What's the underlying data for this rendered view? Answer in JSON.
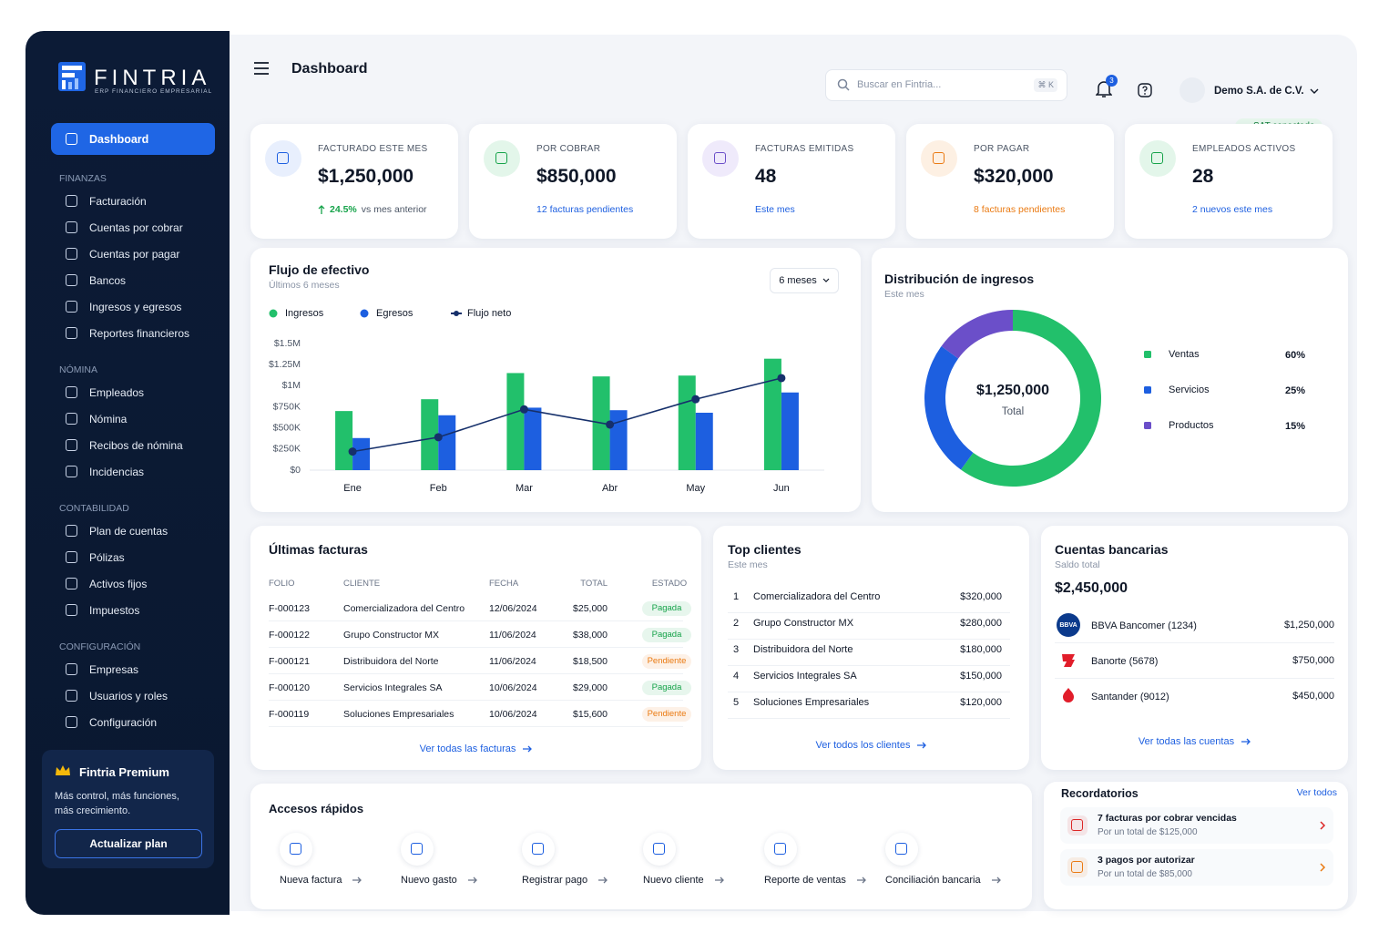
{
  "brand": {
    "name": "FINTRIA",
    "tagline": "ERP FINANCIERO EMPRESARIAL"
  },
  "sidebar": {
    "active": "Dashboard",
    "sections": [
      {
        "title": "FINANZAS",
        "items": [
          "Facturación",
          "Cuentas por cobrar",
          "Cuentas por pagar",
          "Bancos",
          "Ingresos y egresos",
          "Reportes financieros"
        ]
      },
      {
        "title": "NÓMINA",
        "items": [
          "Empleados",
          "Nómina",
          "Recibos de nómina",
          "Incidencias"
        ]
      },
      {
        "title": "CONTABILIDAD",
        "items": [
          "Plan de cuentas",
          "Pólizas",
          "Activos fijos",
          "Impuestos"
        ]
      },
      {
        "title": "CONFIGURACIÓN",
        "items": [
          "Empresas",
          "Usuarios y roles",
          "Configuración"
        ]
      }
    ],
    "promo": {
      "title": "Fintria Premium",
      "text": "Más control, más funciones, más crecimiento.",
      "button": "Actualizar plan"
    }
  },
  "header": {
    "title": "Dashboard",
    "search": "Buscar en Fintria...",
    "shortcut": "⌘ K",
    "notifications": 3,
    "company": "Demo S.A. de C.V.",
    "status": "SAT conectado"
  },
  "kpis": [
    {
      "label": "FACTURADO ESTE MES",
      "value": "$1,250,000",
      "change": "24.5%",
      "note": "vs mes anterior",
      "note_color": "#16a34a"
    },
    {
      "label": "POR COBRAR",
      "value": "$850,000",
      "note": "12 facturas pendientes",
      "note_color": "#1d5fe0"
    },
    {
      "label": "FACTURAS EMITIDAS",
      "value": "48",
      "note": "Este mes",
      "note_color": "#1d5fe0"
    },
    {
      "label": "POR PAGAR",
      "value": "$320,000",
      "note": "8 facturas pendientes",
      "note_color": "#ea7a12"
    },
    {
      "label": "EMPLEADOS ACTIVOS",
      "value": "28",
      "note": "2 nuevos este mes",
      "note_color": "#1d5fe0"
    }
  ],
  "cash_flow": {
    "type": "bar",
    "title": "Flujo de efectivo",
    "subtitle": "Últimos 6 meses",
    "period": "6 meses",
    "categories": [
      "Ene",
      "Feb",
      "Mar",
      "Abr",
      "May",
      "Jun"
    ],
    "series": [
      {
        "name": "Ingresos",
        "color": "#22c06b",
        "values": [
          700000,
          840000,
          1150000,
          1110000,
          1120000,
          1320000
        ]
      },
      {
        "name": "Egresos",
        "color": "#1d5fe0",
        "values": [
          380000,
          650000,
          740000,
          710000,
          680000,
          920000
        ]
      },
      {
        "name": "Flujo neto",
        "type": "line",
        "color": "#16306b",
        "values": [
          220000,
          390000,
          720000,
          540000,
          840000,
          1090000
        ]
      }
    ],
    "ylim": [
      0,
      1500000
    ],
    "yticks": [
      {
        "value": 0,
        "label": "$0"
      },
      {
        "value": 250000,
        "label": "$250K"
      },
      {
        "value": 500000,
        "label": "$500K"
      },
      {
        "value": 750000,
        "label": "$750K"
      },
      {
        "value": 1000000,
        "label": "$1M"
      },
      {
        "value": 1250000,
        "label": "$1.25M"
      },
      {
        "value": 1500000,
        "label": "$1.5M"
      }
    ],
    "grid": false
  },
  "income_distribution": {
    "type": "pie",
    "title": "Distribución de ingresos",
    "subtitle": "Este mes",
    "center_value": "$1,250,000",
    "center_label": "Total",
    "categories": [
      "Ventas",
      "Servicios",
      "Productos"
    ],
    "values": [
      60,
      25,
      15
    ],
    "value_labels": [
      "60%",
      "25%",
      "15%"
    ],
    "colors": [
      "#22c06b",
      "#1d5fe0",
      "#6b4fc9"
    ]
  },
  "invoices": {
    "title": "Últimas facturas",
    "columns": [
      "FOLIO",
      "CLIENTE",
      "FECHA",
      "TOTAL",
      "ESTADO"
    ],
    "rows": [
      [
        "F-000123",
        "Comercializadora del Centro",
        "12/06/2024",
        "$25,000",
        "Pagada"
      ],
      [
        "F-000122",
        "Grupo Constructor MX",
        "11/06/2024",
        "$38,000",
        "Pagada"
      ],
      [
        "F-000121",
        "Distribuidora del Norte",
        "11/06/2024",
        "$18,500",
        "Pendiente"
      ],
      [
        "F-000120",
        "Servicios Integrales SA",
        "10/06/2024",
        "$29,000",
        "Pagada"
      ],
      [
        "F-000119",
        "Soluciones Empresariales",
        "10/06/2024",
        "$15,600",
        "Pendiente"
      ]
    ],
    "status_colors": [
      "#16a34a",
      "#16a34a",
      "#ea7a12",
      "#16a34a",
      "#ea7a12"
    ],
    "link": "Ver todas las facturas"
  },
  "top_clients": {
    "title": "Top clientes",
    "subtitle": "Este mes",
    "rows": [
      [
        "1",
        "Comercializadora del Centro",
        "$320,000"
      ],
      [
        "2",
        "Grupo Constructor MX",
        "$280,000"
      ],
      [
        "3",
        "Distribuidora del Norte",
        "$180,000"
      ],
      [
        "4",
        "Servicios Integrales SA",
        "$150,000"
      ],
      [
        "5",
        "Soluciones Empresariales",
        "$120,000"
      ]
    ],
    "link": "Ver todos los clientes"
  },
  "bank_accounts": {
    "title": "Cuentas bancarias",
    "subtitle": "Saldo total",
    "total": "$2,450,000",
    "accounts": [
      {
        "logo": "BBVA",
        "name": "BBVA Bancomer (1234)",
        "balance": "$1,250,000"
      },
      {
        "name": "Banorte (5678)",
        "balance": "$750,000"
      },
      {
        "name": "Santander (9012)",
        "balance": "$450,000"
      }
    ],
    "link": "Ver todas las cuentas"
  },
  "quick_access": {
    "title": "Accesos rápidos",
    "items": [
      "Nueva factura",
      "Nuevo gasto",
      "Registrar pago",
      "Nuevo cliente",
      "Reporte de ventas",
      "Conciliación bancaria"
    ]
  },
  "reminders": {
    "title": "Recordatorios",
    "link": "Ver todos",
    "items": [
      {
        "title": "7 facturas por cobrar vencidas",
        "detail": "Por un total de $125,000"
      },
      {
        "title": "3 pagos por autorizar",
        "detail": "Por un total de $85,000"
      }
    ]
  }
}
